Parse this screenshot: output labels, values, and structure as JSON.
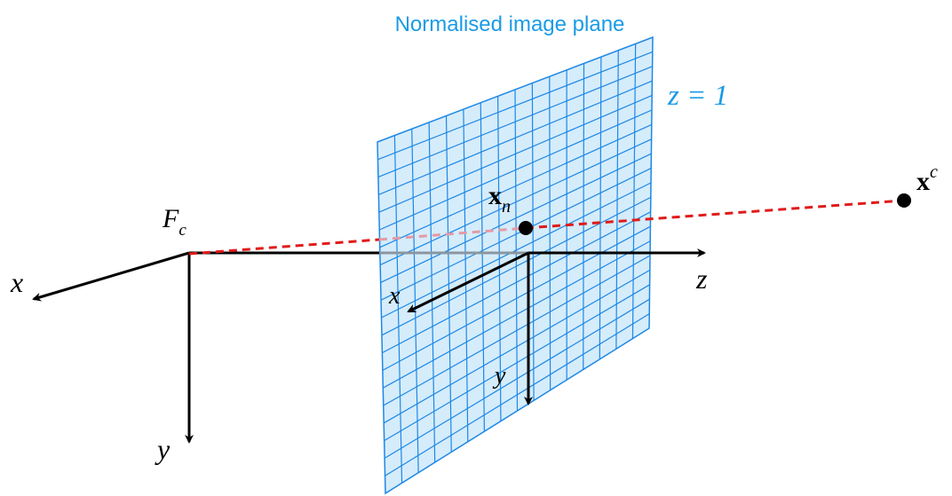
{
  "plane": {
    "title": "Normalised image plane",
    "equation": "z = 1",
    "fill_color": "#cfe9fb",
    "grid_color": "#1e88e5",
    "title_color": "#1a9be6"
  },
  "camera_frame": {
    "label_main": "F",
    "label_sub": "c",
    "axis_x_label": "x",
    "axis_y_label": "y",
    "axis_z_label": "z"
  },
  "image_frame": {
    "axis_x_label": "x",
    "axis_y_label": "y"
  },
  "points": {
    "normalised_point_main": "x",
    "normalised_point_sub": "n",
    "camera_point_main": "x",
    "camera_point_sup": "c"
  },
  "colors": {
    "axis": "#000000",
    "ray": "#e01b1b",
    "ray_hidden": "#e39aa6"
  }
}
